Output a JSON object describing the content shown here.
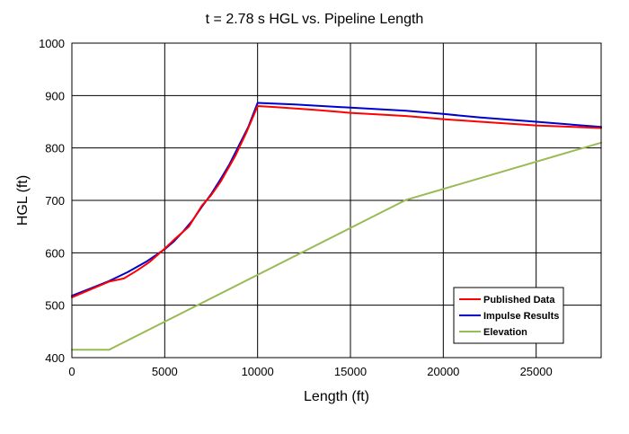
{
  "chart_data": {
    "type": "line",
    "title": "t = 2.78 s HGL vs. Pipeline Length",
    "xlabel": "Length (ft)",
    "ylabel": "HGL (ft)",
    "xlim": [
      0,
      28500
    ],
    "ylim": [
      400,
      1000
    ],
    "x_ticks": [
      0,
      5000,
      10000,
      15000,
      20000,
      25000
    ],
    "y_ticks": [
      400,
      500,
      600,
      700,
      800,
      900,
      1000
    ],
    "grid": true,
    "legend_position": "bottom-right",
    "series": [
      {
        "name": "Published Data",
        "color": "#ff0000",
        "x": [
          0,
          1000,
          2000,
          2800,
          3500,
          4200,
          5000,
          5500,
          6300,
          7000,
          7500,
          8000,
          8800,
          9400,
          10000,
          11000,
          13000,
          15000,
          18000,
          20000,
          22000,
          25000,
          28500
        ],
        "y": [
          515,
          530,
          545,
          551,
          566,
          583,
          608,
          625,
          650,
          690,
          710,
          735,
          785,
          830,
          880,
          878,
          873,
          867,
          861,
          855,
          850,
          843,
          838
        ]
      },
      {
        "name": "Impulse Results",
        "color": "#0000cc",
        "x": [
          0,
          1000,
          2000,
          3000,
          4000,
          5000,
          5500,
          6000,
          6500,
          7000,
          7500,
          8000,
          8500,
          9000,
          9500,
          10000,
          12000,
          15000,
          18000,
          20000,
          22000,
          25000,
          28500
        ],
        "y": [
          518,
          532,
          546,
          563,
          583,
          607,
          622,
          641,
          662,
          688,
          712,
          740,
          770,
          805,
          840,
          886,
          883,
          877,
          871,
          865,
          858,
          850,
          840
        ]
      },
      {
        "name": "Elevation",
        "color": "#99bb55",
        "x": [
          0,
          2000,
          18000,
          28500
        ],
        "y": [
          415,
          415,
          701,
          810
        ]
      }
    ]
  }
}
